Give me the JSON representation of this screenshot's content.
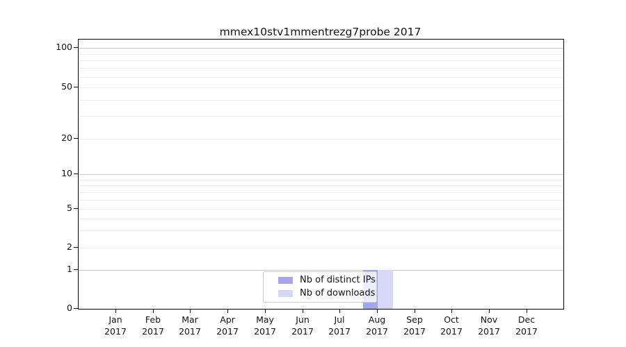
{
  "chart_data": {
    "type": "bar",
    "title": "mmex10stv1mmentrezg7probe 2017",
    "x": {
      "categories": [
        "Jan",
        "Feb",
        "Mar",
        "Apr",
        "May",
        "Jun",
        "Jul",
        "Aug",
        "Sep",
        "Oct",
        "Nov",
        "Dec"
      ],
      "year_label": "2017"
    },
    "y": {
      "scale": "log-like with zero baseline",
      "ticks": [
        0,
        1,
        2,
        5,
        10,
        20,
        50,
        100
      ],
      "minor_ticks": [
        3,
        4,
        6,
        7,
        8,
        9,
        30,
        40,
        60,
        70,
        80,
        90
      ],
      "range": [
        0,
        116
      ],
      "grid": true
    },
    "series": [
      {
        "name": "Nb of distinct IPs",
        "color": "#a5a5eb",
        "values": [
          0,
          0,
          0,
          0,
          0,
          0,
          0,
          1,
          0,
          0,
          0,
          0
        ]
      },
      {
        "name": "Nb of downloads",
        "color": "#d7d7f8",
        "values": [
          0,
          0,
          0,
          0,
          0,
          0,
          0,
          1,
          0,
          0,
          0,
          0
        ]
      }
    ],
    "legend": {
      "position": "lower-center",
      "entries": [
        "Nb of distinct IPs",
        "Nb of downloads"
      ]
    }
  }
}
